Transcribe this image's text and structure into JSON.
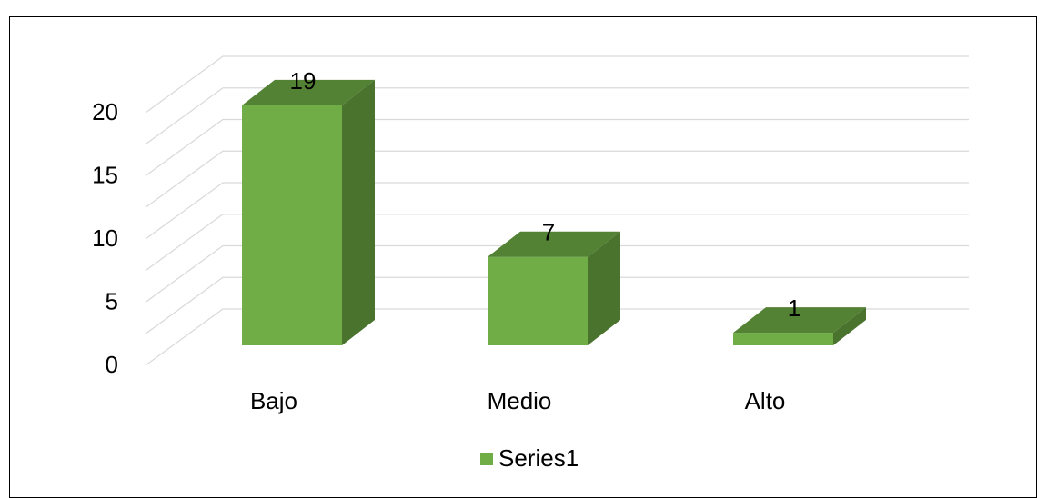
{
  "chart_data": {
    "type": "bar",
    "categories": [
      "Bajo",
      "Medio",
      "Alto"
    ],
    "series": [
      {
        "name": "Series1",
        "values": [
          19,
          7,
          1
        ]
      }
    ],
    "data_labels": [
      "19",
      "7",
      "1"
    ],
    "y_ticks": [
      "0",
      "5",
      "10",
      "15",
      "20"
    ],
    "ylim": [
      0,
      20
    ],
    "grid": true,
    "legend_position": "bottom",
    "colors": {
      "front": "#70ad47",
      "side": "#4a732e",
      "top": "#548235",
      "grid": "#d9d9d9"
    }
  }
}
